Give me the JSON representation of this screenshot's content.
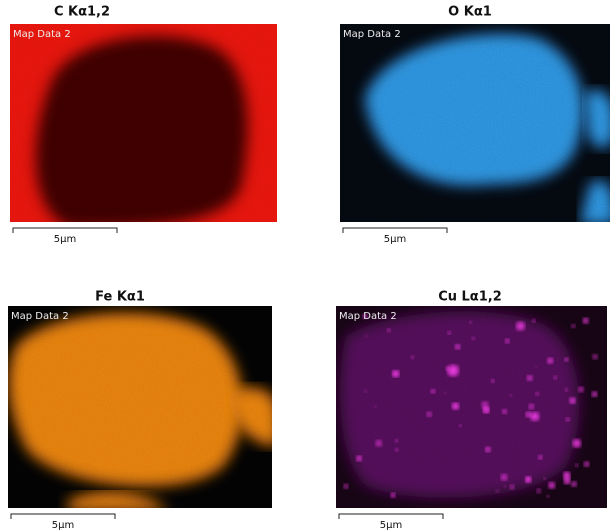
{
  "panels": [
    {
      "title": "C Kα1,2",
      "label": "Map Data 2",
      "scale": "5µm"
    },
    {
      "title": "O Kα1",
      "label": "Map Data 2",
      "scale": "5µm"
    },
    {
      "title": "Fe Kα1",
      "label": "Map Data 2",
      "scale": "5µm"
    },
    {
      "title": "Cu Lα1,2",
      "label": "Map Data 2",
      "scale": "5µm"
    }
  ]
}
